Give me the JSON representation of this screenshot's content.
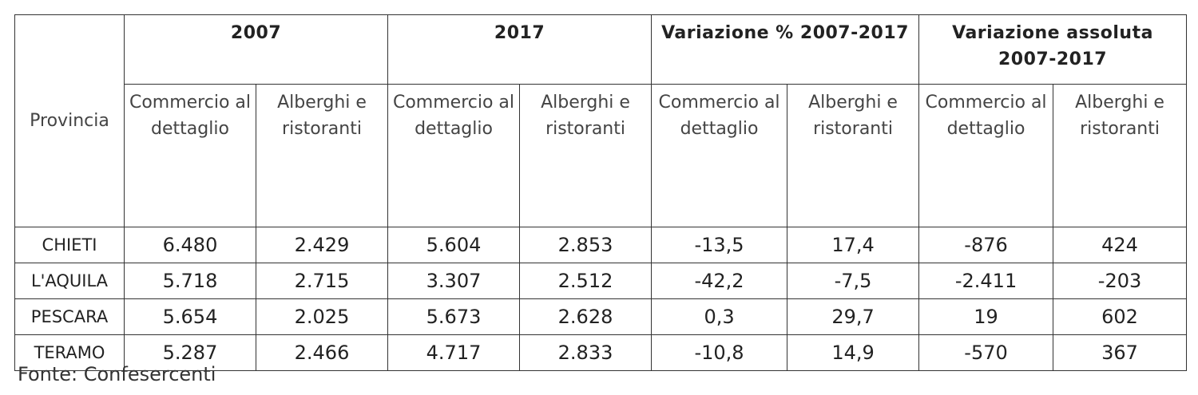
{
  "table": {
    "corner": "Provincia",
    "groups": [
      "2007",
      "2017",
      "Variazione % 2007-2017",
      "Variazione assoluta 2007-2017"
    ],
    "subheaders": [
      "Commercio al dettaglio",
      "Alberghi e ristoranti",
      "Commercio al dettaglio",
      "Alberghi e ristoranti",
      "Commercio al dettaglio",
      "Alberghi e ristoranti",
      "Commercio al dettaglio",
      "Alberghi e ristoranti"
    ],
    "rows": [
      [
        "CHIETI",
        "6.480",
        "2.429",
        "5.604",
        "2.853",
        "-13,5",
        "17,4",
        "-876",
        "424"
      ],
      [
        "L'AQUILA",
        "5.718",
        "2.715",
        "3.307",
        "2.512",
        "-42,2",
        "-7,5",
        "-2.411",
        "-203"
      ],
      [
        "PESCARA",
        "5.654",
        "2.025",
        "5.673",
        "2.628",
        "0,3",
        "29,7",
        "19",
        "602"
      ],
      [
        "TERAMO",
        "5.287",
        "2.466",
        "4.717",
        "2.833",
        "-10,8",
        "14,9",
        "-570",
        "367"
      ]
    ]
  },
  "source": "Fonte: Confesercenti"
}
